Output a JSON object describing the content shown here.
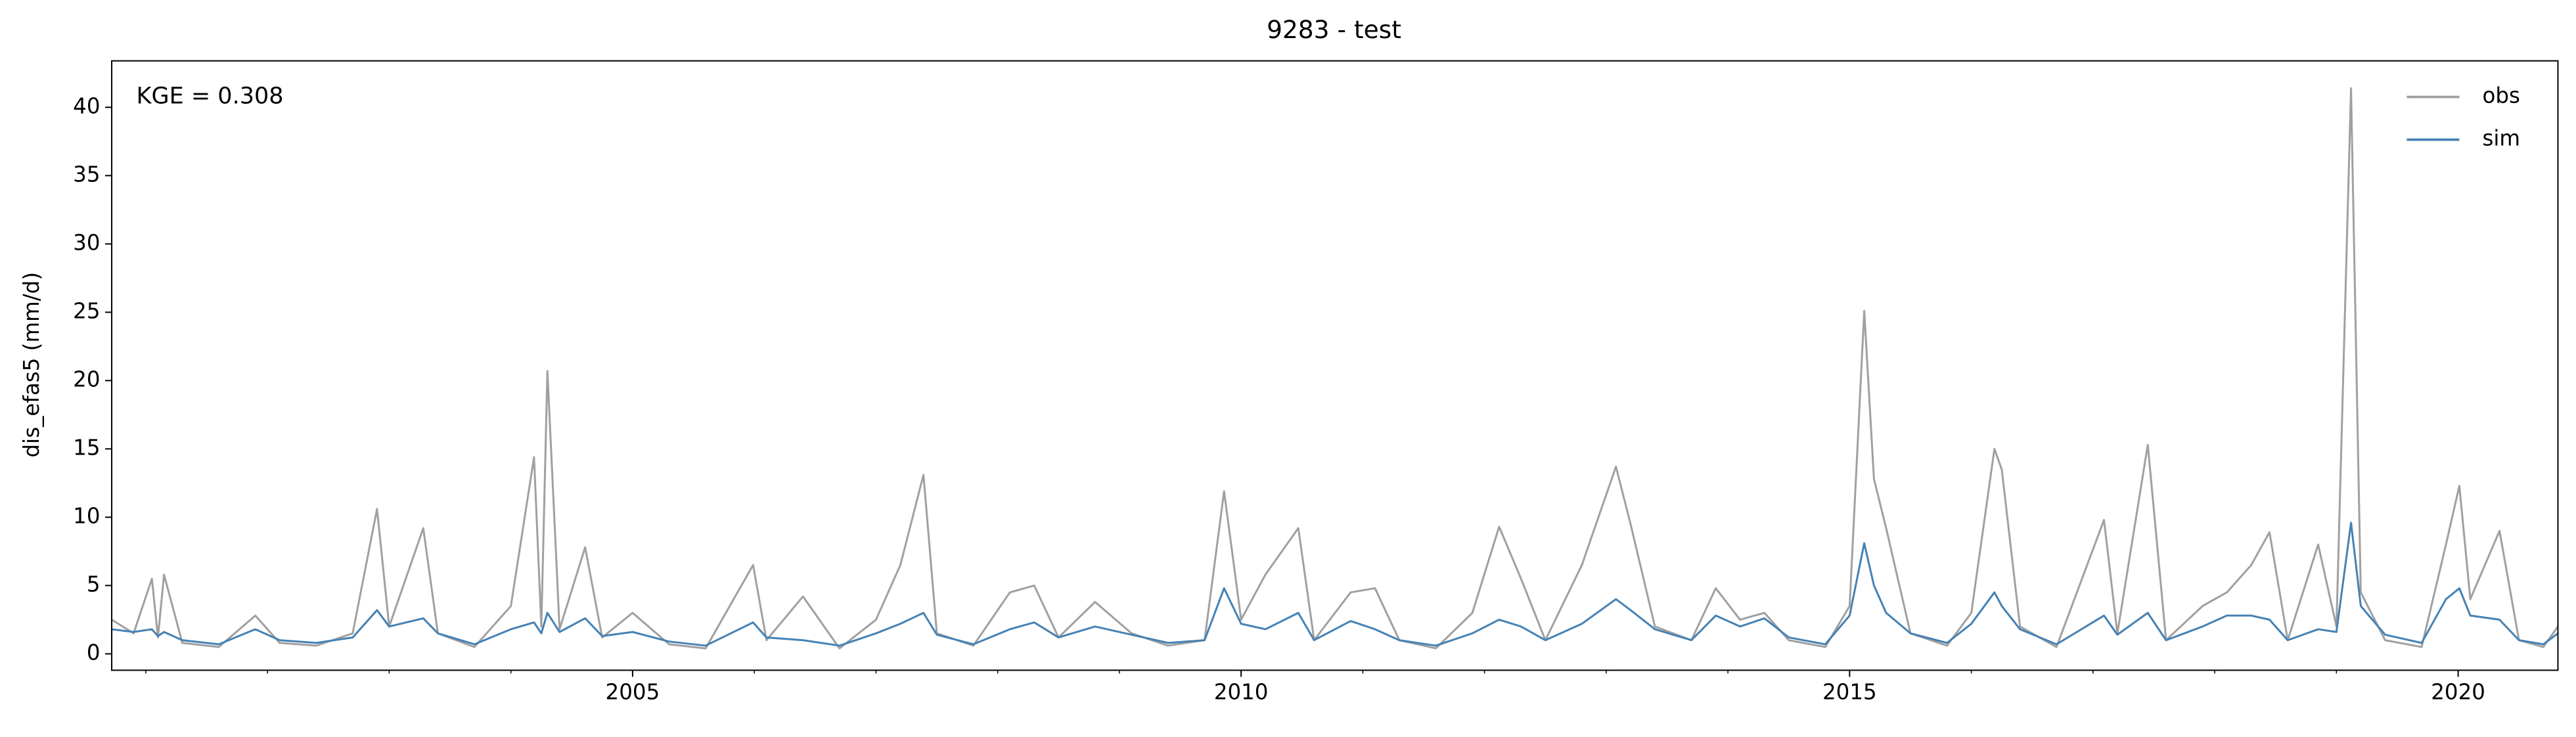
{
  "chart_data": {
    "type": "line",
    "title": "9283 - test",
    "y_label": "dis_efas5 (mm/d)",
    "annotation": "KGE = 0.308",
    "legend": "upper right",
    "grid": false,
    "xlim": [
      2000.72,
      2020.82
    ],
    "xticks": [
      2005,
      2010,
      2015,
      2020
    ],
    "xminorticks": [
      2001,
      2002,
      2003,
      2004,
      2006,
      2007,
      2008,
      2009,
      2011,
      2012,
      2013,
      2014,
      2016,
      2017,
      2018,
      2019
    ],
    "ylim": [
      -1.2,
      43.4
    ],
    "yticks": [
      0,
      5,
      10,
      15,
      20,
      25,
      30,
      35,
      40
    ],
    "x": [
      2000.72,
      2000.9,
      2001.05,
      2001.1,
      2001.15,
      2001.3,
      2001.6,
      2001.9,
      2002.1,
      2002.4,
      2002.7,
      2002.9,
      2003.0,
      2003.28,
      2003.4,
      2003.7,
      2004.0,
      2004.19,
      2004.25,
      2004.3,
      2004.4,
      2004.61,
      2004.75,
      2005.0,
      2005.3,
      2005.6,
      2005.99,
      2006.1,
      2006.4,
      2006.7,
      2007.0,
      2007.2,
      2007.39,
      2007.5,
      2007.8,
      2008.1,
      2008.3,
      2008.5,
      2008.8,
      2009.1,
      2009.4,
      2009.7,
      2009.86,
      2010.0,
      2010.2,
      2010.47,
      2010.6,
      2010.9,
      2011.1,
      2011.3,
      2011.6,
      2011.9,
      2012.12,
      2012.3,
      2012.5,
      2012.8,
      2013.08,
      2013.2,
      2013.4,
      2013.7,
      2013.9,
      2014.1,
      2014.3,
      2014.5,
      2014.8,
      2015.0,
      2015.12,
      2015.2,
      2015.3,
      2015.5,
      2015.8,
      2016.0,
      2016.19,
      2016.25,
      2016.4,
      2016.7,
      2017.09,
      2017.2,
      2017.45,
      2017.6,
      2017.9,
      2018.1,
      2018.3,
      2018.45,
      2018.6,
      2018.85,
      2019.0,
      2019.12,
      2019.2,
      2019.4,
      2019.7,
      2019.9,
      2020.01,
      2020.1,
      2020.34,
      2020.5,
      2020.7,
      2020.82
    ],
    "series": [
      {
        "name": "obs",
        "color": "#a0a0a0",
        "values": [
          2.5,
          1.5,
          5.5,
          1.2,
          5.8,
          0.8,
          0.5,
          2.8,
          0.8,
          0.6,
          1.5,
          10.6,
          2.0,
          9.2,
          1.5,
          0.5,
          3.5,
          14.4,
          2.0,
          20.7,
          1.8,
          7.8,
          1.2,
          3.0,
          0.7,
          0.4,
          6.5,
          1.0,
          4.2,
          0.4,
          2.5,
          6.5,
          13.1,
          1.5,
          0.6,
          4.5,
          5.0,
          1.2,
          3.8,
          1.5,
          0.6,
          1.0,
          11.9,
          2.5,
          5.8,
          9.2,
          1.0,
          4.5,
          4.8,
          1.0,
          0.4,
          3.0,
          9.3,
          5.5,
          1.0,
          6.5,
          13.7,
          9.5,
          2.0,
          1.0,
          4.8,
          2.5,
          3.0,
          1.0,
          0.5,
          3.5,
          25.1,
          12.8,
          9.2,
          1.5,
          0.6,
          3.0,
          15.0,
          13.5,
          2.0,
          0.5,
          9.8,
          1.5,
          15.3,
          1.0,
          3.5,
          4.5,
          6.5,
          8.9,
          1.0,
          8.0,
          2.0,
          41.4,
          4.5,
          1.0,
          0.5,
          8.0,
          12.3,
          4.0,
          9.0,
          1.0,
          0.5,
          2.0
        ]
      },
      {
        "name": "sim",
        "color": "#4682b4",
        "values": [
          1.8,
          1.6,
          1.8,
          1.3,
          1.6,
          1.0,
          0.7,
          1.8,
          1.0,
          0.8,
          1.2,
          3.2,
          2.0,
          2.6,
          1.5,
          0.7,
          1.8,
          2.3,
          1.5,
          3.0,
          1.6,
          2.6,
          1.3,
          1.6,
          0.9,
          0.6,
          2.3,
          1.2,
          1.0,
          0.6,
          1.5,
          2.2,
          3.0,
          1.4,
          0.7,
          1.8,
          2.3,
          1.2,
          2.0,
          1.4,
          0.8,
          1.0,
          4.8,
          2.2,
          1.8,
          3.0,
          1.0,
          2.4,
          1.8,
          1.0,
          0.6,
          1.5,
          2.5,
          2.0,
          1.0,
          2.2,
          4.0,
          3.2,
          1.8,
          1.0,
          2.8,
          2.0,
          2.6,
          1.2,
          0.7,
          2.8,
          8.1,
          5.0,
          3.0,
          1.5,
          0.8,
          2.2,
          4.5,
          3.5,
          1.8,
          0.7,
          2.8,
          1.4,
          3.0,
          1.0,
          2.0,
          2.8,
          2.8,
          2.5,
          1.0,
          1.8,
          1.6,
          9.6,
          3.5,
          1.4,
          0.8,
          4.0,
          4.8,
          2.8,
          2.5,
          1.0,
          0.7,
          1.5
        ]
      }
    ]
  }
}
